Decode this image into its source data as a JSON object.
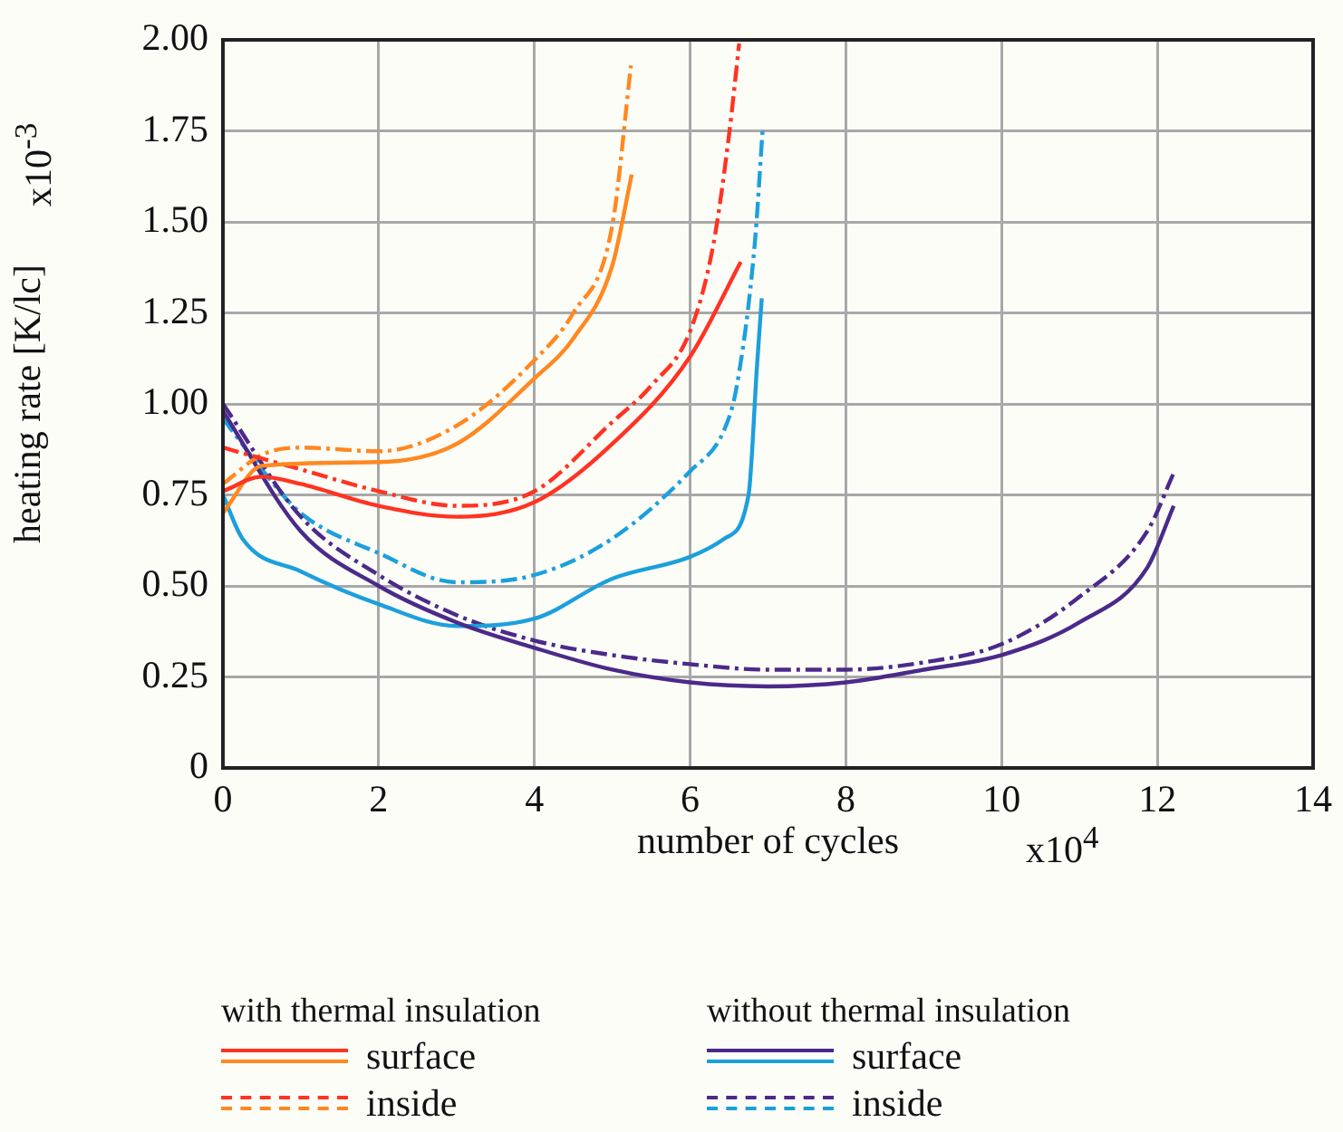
{
  "chart_data": {
    "type": "line",
    "xlabel": "number of cycles",
    "ylabel": "heating rate [K/lc]",
    "annotations": [
      "with thermal insulation",
      "without thermal insulation",
      "x10$^{4}$",
      "x10$^{-3}$"
    ],
    "xlim": [
      0,
      14
    ],
    "xticks": [
      0,
      2,
      4,
      6,
      8,
      10,
      12,
      14
    ],
    "ylim": [
      0,
      2
    ],
    "yticks": [
      0,
      0.25,
      {
        "value": 0.5,
        "label": "0.50"
      },
      0.75,
      {
        "value": 1,
        "label": "1.00"
      },
      1.25,
      {
        "value": 1.5,
        "label": "1.50"
      },
      1.75,
      {
        "value": 2,
        "label": "2.00"
      }
    ],
    "grid": true,
    "legend": "bottom",
    "marker": "none",
    "series": [
      {
        "name": "surface",
        "color": "#ff3322",
        "line_style": "solid",
        "x": [
          0,
          0.5,
          1,
          2,
          3,
          4,
          5,
          6,
          6.65
        ],
        "values": [
          0.76,
          0.8,
          0.78,
          0.72,
          0.69,
          0.73,
          0.89,
          1.13,
          1.39
        ]
      },
      {
        "color": "#ff8820",
        "line_style": "solid",
        "x": [
          0,
          0.5,
          2,
          3,
          4,
          4.5,
          5,
          5.25
        ],
        "values": [
          0.7,
          0.83,
          0.84,
          0.89,
          1.07,
          1.18,
          1.38,
          1.63
        ]
      },
      {
        "name": "inside",
        "color": "#ff3322",
        "line_style": "dashed-dotted",
        "x": [
          0,
          1,
          2,
          3,
          4,
          5,
          5.5,
          6,
          6.3,
          6.5,
          6.63
        ],
        "values": [
          0.88,
          0.82,
          0.76,
          0.72,
          0.76,
          0.95,
          1.05,
          1.2,
          1.44,
          1.74,
          1.99
        ]
      },
      {
        "color": "#ff8820",
        "line_style": "dashed-dotted",
        "x": [
          0,
          0.5,
          1,
          2,
          3,
          4,
          4.5,
          5,
          5.24
        ],
        "values": [
          0.78,
          0.86,
          0.88,
          0.87,
          0.94,
          1.12,
          1.25,
          1.49,
          1.93
        ]
      },
      {
        "name": "surface",
        "color": "#4b2a8a",
        "line_style": "solid",
        "x": [
          0,
          1,
          2,
          3,
          4,
          5,
          6,
          7,
          8,
          9,
          10,
          11,
          11.87,
          12.21
        ],
        "values": [
          0.98,
          0.65,
          0.5,
          0.4,
          0.33,
          0.27,
          0.235,
          0.224,
          0.235,
          0.27,
          0.31,
          0.4,
          0.55,
          0.72
        ]
      },
      {
        "color": "#1ca0dc",
        "line_style": "solid",
        "x": [
          0,
          0.25,
          1,
          2,
          3,
          4,
          5,
          6,
          6.44,
          6.75,
          6.86,
          6.92
        ],
        "values": [
          0.75,
          0.63,
          0.54,
          0.45,
          0.39,
          0.41,
          0.52,
          0.58,
          0.63,
          0.75,
          1.11,
          1.29
        ]
      },
      {
        "name": "inside",
        "color": "#4b2a8a",
        "line_style": "dashed-dotted",
        "x": [
          0,
          1,
          2,
          3,
          4,
          5,
          6,
          7,
          8,
          9,
          10,
          11,
          11.87,
          12.21
        ],
        "values": [
          1.0,
          0.69,
          0.53,
          0.42,
          0.35,
          0.31,
          0.285,
          0.27,
          0.27,
          0.29,
          0.34,
          0.47,
          0.65,
          0.81
        ]
      },
      {
        "color": "#1ca0dc",
        "line_style": "dashed-dotted",
        "x": [
          0,
          0.5,
          1,
          2,
          3,
          4,
          5,
          6,
          6.44,
          6.6,
          6.83,
          6.93
        ],
        "values": [
          0.96,
          0.82,
          0.7,
          0.59,
          0.51,
          0.53,
          0.63,
          0.815,
          0.93,
          1.05,
          1.44,
          1.75
        ]
      }
    ]
  }
}
